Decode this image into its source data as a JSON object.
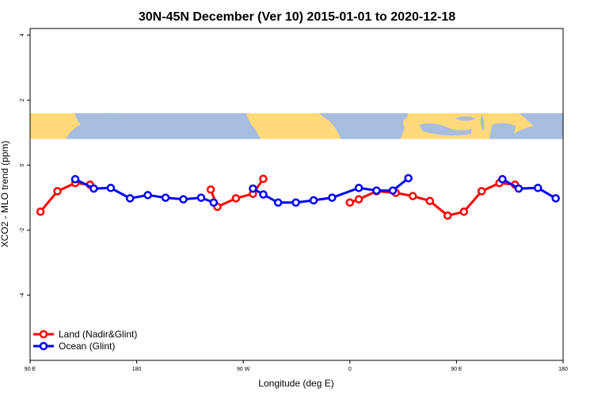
{
  "chart_data": {
    "type": "line",
    "title": "30N-45N December (Ver 10)   2015-01-01 to 2020-12-18",
    "xlabel": "Longitude (deg E)",
    "ylabel": "XCO2 - MLO trend (ppm)",
    "xlim": [
      90,
      450
    ],
    "ylim": [
      -6,
      4.2
    ],
    "x_ticks": [
      {
        "value": 90,
        "label": "90 E"
      },
      {
        "value": 162,
        "label": "180"
      },
      {
        "value": 234,
        "label": "90 W"
      },
      {
        "value": 306,
        "label": "0"
      },
      {
        "value": 378,
        "label": "90 E"
      },
      {
        "value": 450,
        "label": "180"
      }
    ],
    "y_ticks": [
      {
        "value": 4,
        "label": "4"
      },
      {
        "value": 2,
        "label": "2"
      },
      {
        "value": 0,
        "label": "0"
      },
      {
        "value": -2,
        "label": "-2"
      },
      {
        "value": -4,
        "label": "-4"
      }
    ],
    "grid": false,
    "legend_position": "bottom-left",
    "map_strip": {
      "y_range": [
        0.8,
        1.6
      ],
      "land_color": "#ffd97a",
      "ocean_color": "#a7bddf"
    },
    "series": [
      {
        "name": "Land (Nadir&Glint)",
        "color": "#ff0000",
        "segments": [
          [
            [
              97,
              -1.43
            ],
            [
              108.5,
              -0.8
            ],
            [
              120.5,
              -0.55
            ],
            [
              130.5,
              -0.6
            ]
          ],
          [
            [
              212,
              -0.75
            ],
            [
              216.5,
              -1.28
            ],
            [
              229,
              -1.02
            ],
            [
              240.5,
              -0.88
            ],
            [
              247.5,
              -0.42
            ]
          ],
          [
            [
              306,
              -1.15
            ],
            [
              312,
              -1.05
            ],
            [
              324,
              -0.8
            ],
            [
              337,
              -0.85
            ],
            [
              348.5,
              -0.95
            ],
            [
              360,
              -1.1
            ],
            [
              372,
              -1.55
            ],
            [
              383,
              -1.43
            ],
            [
              395,
              -0.8
            ],
            [
              407,
              -0.55
            ],
            [
              417.5,
              -0.6
            ]
          ]
        ]
      },
      {
        "name": "Ocean (Glint)",
        "color": "#0000ff",
        "segments": [
          [
            [
              120.5,
              -0.43
            ],
            [
              133,
              -0.72
            ],
            [
              144.5,
              -0.7
            ],
            [
              157.5,
              -1.02
            ],
            [
              169.5,
              -0.92
            ],
            [
              181.5,
              -1.0
            ],
            [
              193.5,
              -1.05
            ],
            [
              205.5,
              -1.0
            ],
            [
              214,
              -1.15
            ]
          ],
          [
            [
              240.5,
              -0.72
            ],
            [
              247.5,
              -0.9
            ],
            [
              257.5,
              -1.15
            ],
            [
              269.5,
              -1.15
            ],
            [
              281.5,
              -1.08
            ],
            [
              294,
              -1.0
            ],
            [
              312,
              -0.7
            ],
            [
              324,
              -0.78
            ],
            [
              335,
              -0.78
            ],
            [
              345.5,
              -0.4
            ]
          ],
          [
            [
              409,
              -0.43
            ],
            [
              420,
              -0.72
            ],
            [
              433,
              -0.7
            ],
            [
              445,
              -1.02
            ]
          ]
        ]
      }
    ]
  }
}
